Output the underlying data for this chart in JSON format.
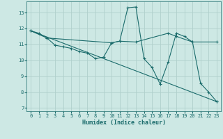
{
  "xlabel": "Humidex (Indice chaleur)",
  "bg_color": "#cde8e4",
  "grid_color": "#b0d0cc",
  "line_color": "#1a6b6b",
  "xlim": [
    -0.5,
    23.5
  ],
  "ylim": [
    6.8,
    13.7
  ],
  "yticks": [
    7,
    8,
    9,
    10,
    11,
    12,
    13
  ],
  "xticks": [
    0,
    1,
    2,
    3,
    4,
    5,
    6,
    7,
    8,
    9,
    10,
    11,
    12,
    13,
    14,
    15,
    16,
    17,
    18,
    19,
    20,
    21,
    22,
    23
  ],
  "series1_x": [
    0,
    1,
    2,
    3,
    4,
    5,
    6,
    7,
    8,
    9,
    10,
    11,
    12,
    13,
    14,
    15,
    16,
    17,
    18,
    19,
    20,
    21,
    22,
    23
  ],
  "series1_y": [
    11.85,
    11.7,
    11.4,
    10.95,
    10.85,
    10.75,
    10.55,
    10.45,
    10.1,
    10.2,
    11.1,
    11.2,
    13.3,
    13.35,
    10.1,
    9.55,
    8.5,
    9.9,
    11.7,
    11.5,
    11.15,
    8.55,
    8.0,
    7.4
  ],
  "series2_x": [
    0,
    2,
    10,
    11,
    13,
    17,
    18,
    20,
    23
  ],
  "series2_y": [
    11.85,
    11.4,
    11.1,
    11.2,
    11.15,
    11.7,
    11.5,
    11.15,
    11.15
  ],
  "series3_x": [
    0,
    23
  ],
  "series3_y": [
    11.85,
    7.4
  ]
}
